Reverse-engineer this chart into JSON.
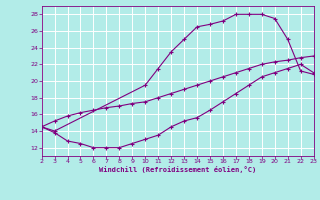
{
  "xlabel": "Windchill (Refroidissement éolien,°C)",
  "line_color": "#800080",
  "bg_color": "#b2ece8",
  "grid_color": "#ffffff",
  "xlim": [
    2,
    23
  ],
  "ylim": [
    11,
    29
  ],
  "xticks": [
    2,
    3,
    4,
    5,
    6,
    7,
    8,
    9,
    10,
    11,
    12,
    13,
    14,
    15,
    16,
    17,
    18,
    19,
    20,
    21,
    22,
    23
  ],
  "yticks": [
    12,
    14,
    16,
    18,
    20,
    22,
    24,
    26,
    28
  ],
  "line1_x": [
    2,
    3,
    10,
    11,
    12,
    13,
    14,
    15,
    16,
    17,
    18,
    19,
    20,
    21,
    22,
    23
  ],
  "line1_y": [
    14.5,
    14.0,
    19.5,
    21.5,
    23.5,
    25.0,
    26.5,
    26.8,
    27.2,
    28.0,
    28.0,
    28.0,
    27.5,
    25.0,
    21.2,
    20.8
  ],
  "line2_x": [
    2,
    3,
    4,
    5,
    6,
    7,
    8,
    9,
    10,
    11,
    12,
    13,
    14,
    15,
    16,
    17,
    18,
    19,
    20,
    21,
    22,
    23
  ],
  "line2_y": [
    14.5,
    13.8,
    12.8,
    12.5,
    12.0,
    12.0,
    12.0,
    12.5,
    13.0,
    13.5,
    14.5,
    15.2,
    15.6,
    16.5,
    17.5,
    18.5,
    19.5,
    20.5,
    21.0,
    21.5,
    22.0,
    21.0
  ],
  "line3_x": [
    2,
    3,
    4,
    5,
    6,
    7,
    8,
    9,
    10,
    11,
    12,
    13,
    14,
    15,
    16,
    17,
    18,
    19,
    20,
    21,
    22,
    23
  ],
  "line3_y": [
    14.5,
    15.2,
    15.8,
    16.2,
    16.5,
    16.8,
    17.0,
    17.3,
    17.5,
    18.0,
    18.5,
    19.0,
    19.5,
    20.0,
    20.5,
    21.0,
    21.5,
    22.0,
    22.3,
    22.5,
    22.8,
    23.0
  ]
}
